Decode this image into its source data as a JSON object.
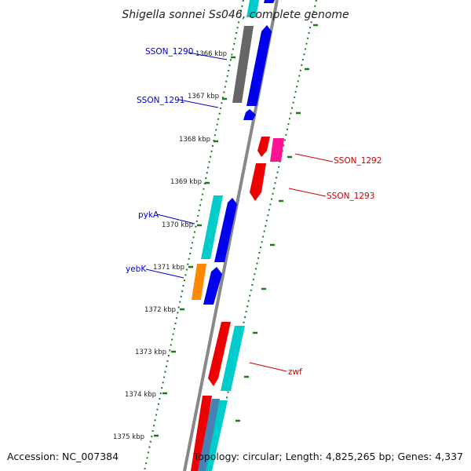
{
  "title": "Shigella sonnei Ss046, complete genome",
  "footer": {
    "accession": "Accession: NC_007384",
    "topology": "Topology: circular; Length: 4,825,265 bp; Genes: 4,337"
  },
  "ticks": [
    "1366 kbp",
    "1367 kbp",
    "1368 kbp",
    "1369 kbp",
    "1370 kbp",
    "1371 kbp",
    "1372 kbp",
    "1373 kbp",
    "1374 kbp",
    "1375 kbp"
  ],
  "gene_labels": [
    {
      "text": "SSON_1290",
      "color": "#0000cc"
    },
    {
      "text": "SSON_1291",
      "color": "#0000cc"
    },
    {
      "text": "SSON_1292",
      "color": "#cc0000"
    },
    {
      "text": "SSON_1293",
      "color": "#cc0000"
    },
    {
      "text": "pykA",
      "color": "#0000cc"
    },
    {
      "text": "yebK",
      "color": "#0000cc"
    },
    {
      "text": "zwf",
      "color": "#cc0000"
    }
  ],
  "colors": {
    "backbone": "#888888",
    "tick_mark": "#1a7a1a",
    "blue_feature": "#0000ee",
    "cyan_feature": "#00cccc",
    "red_feature": "#ee0000",
    "pink_feature": "#ff1493",
    "orange_feature": "#ff8800",
    "gray_feature": "#666666"
  }
}
